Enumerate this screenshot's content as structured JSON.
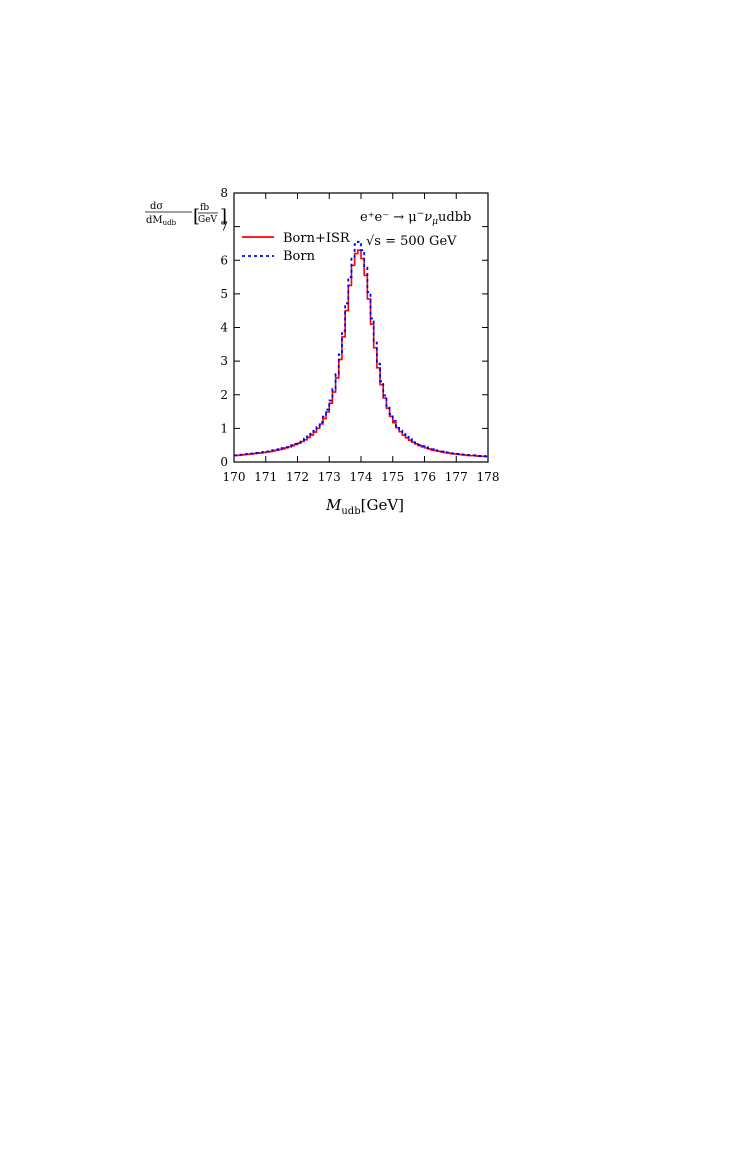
{
  "chart_data": {
    "type": "line",
    "step": true,
    "xlim": [
      170,
      178
    ],
    "ylim": [
      0,
      8
    ],
    "x_ticks": [
      "170",
      "171",
      "172",
      "173",
      "174",
      "175",
      "176",
      "177",
      "178"
    ],
    "y_ticks": [
      "0",
      "1",
      "2",
      "3",
      "4",
      "5",
      "6",
      "7",
      "8"
    ],
    "ylabel": {
      "num_a": "dσ",
      "den_a": "dM",
      "den_sub": "udb",
      "bracket_num": "fb",
      "bracket_den": "GeV"
    },
    "xlabel": {
      "main": "M",
      "sub": "udb",
      "unit": "[GeV]"
    },
    "annotation_process": {
      "lhs": "e⁺e⁻ → μ",
      "sup": "−",
      "nu": "ν",
      "nu_sub": "μ",
      "rhs": "udbb"
    },
    "annotation_energy": "√s = 500 GeV",
    "legend_position": "top-left",
    "bin_width": 0.1,
    "series": [
      {
        "name": "Born+ISR",
        "color": "#ff0000",
        "dash": "solid",
        "x": [
          170.0,
          170.1,
          170.2,
          170.3,
          170.4,
          170.5,
          170.6,
          170.7,
          170.8,
          170.9,
          171.0,
          171.1,
          171.2,
          171.3,
          171.4,
          171.5,
          171.6,
          171.7,
          171.8,
          171.9,
          172.0,
          172.1,
          172.2,
          172.3,
          172.4,
          172.5,
          172.6,
          172.7,
          172.8,
          172.9,
          173.0,
          173.1,
          173.2,
          173.3,
          173.4,
          173.5,
          173.6,
          173.7,
          173.8,
          173.9,
          174.0,
          174.1,
          174.2,
          174.3,
          174.4,
          174.5,
          174.6,
          174.7,
          174.8,
          174.9,
          175.0,
          175.1,
          175.2,
          175.3,
          175.4,
          175.5,
          175.6,
          175.7,
          175.8,
          175.9,
          176.0,
          176.1,
          176.2,
          176.3,
          176.4,
          176.5,
          176.6,
          176.7,
          176.8,
          176.9,
          177.0,
          177.1,
          177.2,
          177.3,
          177.4,
          177.5,
          177.6,
          177.7,
          177.8,
          177.9
        ],
        "values": [
          0.19,
          0.2,
          0.21,
          0.22,
          0.23,
          0.24,
          0.25,
          0.26,
          0.27,
          0.28,
          0.3,
          0.31,
          0.33,
          0.35,
          0.37,
          0.39,
          0.42,
          0.45,
          0.48,
          0.52,
          0.56,
          0.61,
          0.66,
          0.73,
          0.8,
          0.89,
          1.0,
          1.13,
          1.29,
          1.49,
          1.75,
          2.08,
          2.5,
          3.05,
          3.72,
          4.5,
          5.25,
          5.85,
          6.2,
          6.3,
          6.05,
          5.55,
          4.85,
          4.1,
          3.4,
          2.8,
          2.3,
          1.9,
          1.6,
          1.36,
          1.17,
          1.02,
          0.9,
          0.8,
          0.72,
          0.65,
          0.59,
          0.54,
          0.49,
          0.45,
          0.42,
          0.39,
          0.36,
          0.34,
          0.32,
          0.3,
          0.28,
          0.27,
          0.25,
          0.24,
          0.23,
          0.22,
          0.21,
          0.2,
          0.19,
          0.19,
          0.18,
          0.17,
          0.17,
          0.16
        ]
      },
      {
        "name": "Born",
        "color": "#0000ff",
        "dash": "dashed",
        "x": [
          170.0,
          170.1,
          170.2,
          170.3,
          170.4,
          170.5,
          170.6,
          170.7,
          170.8,
          170.9,
          171.0,
          171.1,
          171.2,
          171.3,
          171.4,
          171.5,
          171.6,
          171.7,
          171.8,
          171.9,
          172.0,
          172.1,
          172.2,
          172.3,
          172.4,
          172.5,
          172.6,
          172.7,
          172.8,
          172.9,
          173.0,
          173.1,
          173.2,
          173.3,
          173.4,
          173.5,
          173.6,
          173.7,
          173.8,
          173.9,
          174.0,
          174.1,
          174.2,
          174.3,
          174.4,
          174.5,
          174.6,
          174.7,
          174.8,
          174.9,
          175.0,
          175.1,
          175.2,
          175.3,
          175.4,
          175.5,
          175.6,
          175.7,
          175.8,
          175.9,
          176.0,
          176.1,
          176.2,
          176.3,
          176.4,
          176.5,
          176.6,
          176.7,
          176.8,
          176.9,
          177.0,
          177.1,
          177.2,
          177.3,
          177.4,
          177.5,
          177.6,
          177.7,
          177.8,
          177.9
        ],
        "values": [
          0.2,
          0.21,
          0.22,
          0.23,
          0.24,
          0.25,
          0.26,
          0.27,
          0.28,
          0.3,
          0.31,
          0.33,
          0.35,
          0.37,
          0.39,
          0.41,
          0.44,
          0.47,
          0.5,
          0.54,
          0.58,
          0.63,
          0.69,
          0.76,
          0.84,
          0.93,
          1.04,
          1.18,
          1.35,
          1.56,
          1.83,
          2.18,
          2.62,
          3.2,
          3.9,
          4.72,
          5.5,
          6.1,
          6.48,
          6.55,
          6.3,
          5.78,
          5.05,
          4.27,
          3.55,
          2.92,
          2.4,
          1.98,
          1.67,
          1.42,
          1.22,
          1.06,
          0.93,
          0.83,
          0.75,
          0.68,
          0.62,
          0.56,
          0.51,
          0.47,
          0.44,
          0.41,
          0.38,
          0.35,
          0.33,
          0.31,
          0.29,
          0.28,
          0.26,
          0.25,
          0.24,
          0.23,
          0.22,
          0.21,
          0.2,
          0.2,
          0.19,
          0.18,
          0.18,
          0.17
        ]
      }
    ]
  }
}
